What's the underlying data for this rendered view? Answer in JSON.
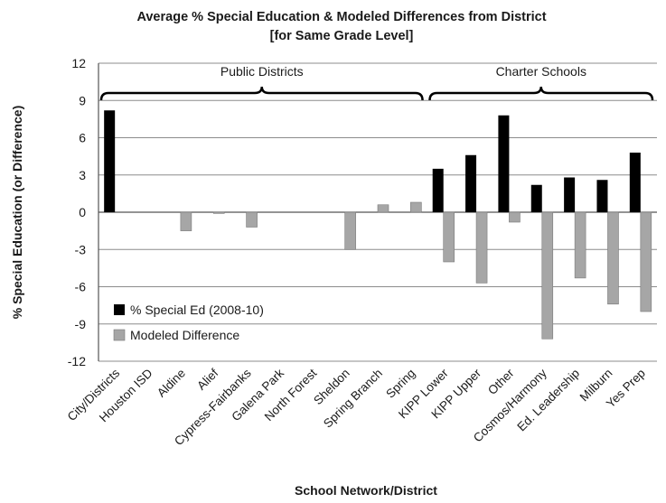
{
  "chart_data": {
    "type": "bar",
    "title": [
      "Average % Special Education & Modeled Differences from District",
      "[for Same Grade Level]"
    ],
    "xlabel": "School Network/District",
    "ylabel": "% Special Education (or Difference)",
    "ylim": [
      -12,
      12
    ],
    "yticks": [
      12,
      9,
      6,
      3,
      0,
      -3,
      -6,
      -9,
      -12
    ],
    "grid": true,
    "legend_position": "bottom-left",
    "categories": [
      "City/Districts",
      "Houston ISD",
      "Aldine",
      "Alief",
      "Cypress-Fairbanks",
      "Galena Park",
      "North Forest",
      "Sheldon",
      "Spring Branch",
      "Spring",
      "KIPP Lower",
      "KIPP Upper",
      "Other",
      "Cosmos/Harmony",
      "Ed. Leadership",
      "Milburn",
      "Yes Prep"
    ],
    "series": [
      {
        "name": "% Special Ed (2008-10)",
        "color": "#000000",
        "values": [
          8.2,
          null,
          null,
          null,
          null,
          null,
          null,
          null,
          null,
          null,
          3.5,
          4.6,
          7.8,
          2.2,
          2.8,
          2.6,
          4.8
        ]
      },
      {
        "name": "Modeled Difference",
        "color": "#a6a6a6",
        "values": [
          null,
          null,
          -1.5,
          -0.1,
          -1.2,
          null,
          null,
          -3.0,
          0.6,
          0.8,
          -4.0,
          -5.7,
          -0.8,
          -10.2,
          -5.3,
          -7.4,
          -8.0
        ]
      }
    ],
    "groups": [
      {
        "label": "Public Districts",
        "first": "City/Districts",
        "last": "Spring"
      },
      {
        "label": "Charter Schools",
        "first": "KIPP Lower",
        "last": "Yes Prep"
      }
    ]
  }
}
